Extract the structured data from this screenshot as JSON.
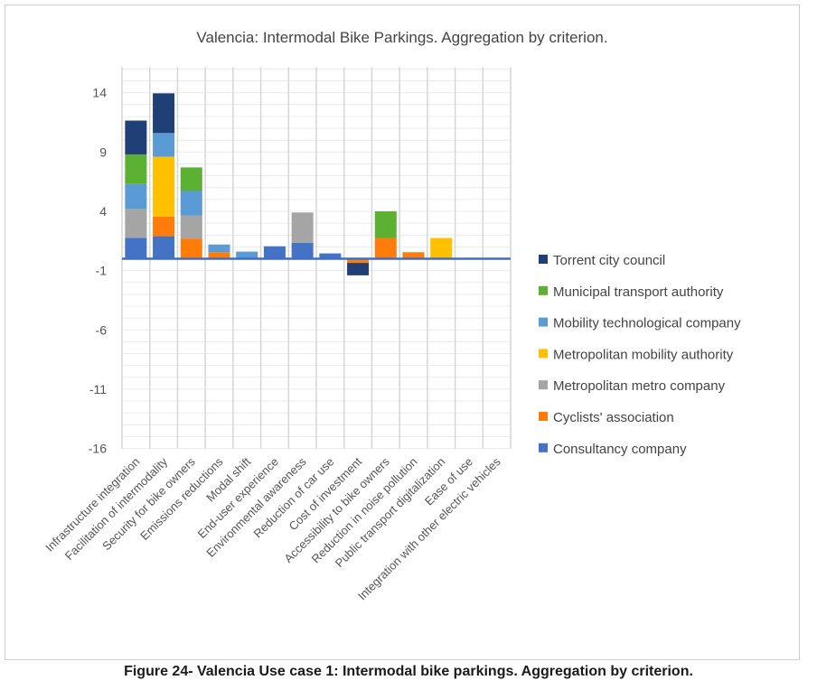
{
  "chart_data": {
    "type": "bar",
    "stacked": true,
    "title": "Valencia: Intermodal Bike Parkings. Aggregation by criterion.",
    "caption": "Figure 24- Valencia Use case 1: Intermodal bike parkings. Aggregation by criterion.",
    "xlabel": "",
    "ylabel": "",
    "ylim": [
      -16,
      16
    ],
    "yticks": [
      14,
      9,
      4,
      -1,
      -6,
      -11,
      -16
    ],
    "grid": true,
    "legend_position": "right",
    "categories": [
      "Infrastructure integration",
      "Facilitation of intermodality",
      "Security for bike owners",
      "Emissions reductions",
      "Modal shift",
      "End-user experience",
      "Environmental awareness",
      "Reduction of car use",
      "Cost of investment",
      "Accessibility to bike owners",
      "Reduction in noise pollution",
      "Public transport digitalization",
      "Ease of use",
      "Integration with other electric vehicles"
    ],
    "series": [
      {
        "name": "Consultancy company",
        "color": "#4472C4",
        "values": [
          1.75,
          1.9,
          0,
          0,
          0,
          1.05,
          1.35,
          0.45,
          0,
          0,
          0,
          0,
          0,
          0
        ]
      },
      {
        "name": "Cyclists' association",
        "color": "#FF7C0A",
        "values": [
          0,
          1.65,
          1.7,
          0.55,
          0,
          0,
          0,
          0,
          -0.35,
          1.75,
          0.55,
          0,
          0,
          0
        ]
      },
      {
        "name": "Metropolitan metro company",
        "color": "#A5A5A5",
        "values": [
          2.45,
          0,
          1.95,
          0,
          0,
          0,
          2.55,
          0,
          0,
          0,
          0,
          0,
          0,
          0
        ]
      },
      {
        "name": "Metropolitan mobility authority",
        "color": "#FFC000",
        "values": [
          0,
          5.05,
          0,
          0,
          0,
          0,
          0,
          0,
          0,
          0,
          0,
          1.75,
          0,
          0
        ]
      },
      {
        "name": "Mobility technological company",
        "color": "#5B9BD5",
        "values": [
          2.1,
          2.0,
          2.1,
          0.65,
          0.6,
          0,
          0,
          0,
          0,
          0,
          0,
          0,
          0,
          0
        ]
      },
      {
        "name": "Municipal transport authority",
        "color": "#5DB132",
        "values": [
          2.5,
          0,
          1.95,
          0,
          0,
          0,
          0,
          0,
          0,
          2.25,
          0,
          0,
          0,
          0
        ]
      },
      {
        "name": "Torrent city council",
        "color": "#213F77",
        "values": [
          2.85,
          3.35,
          0,
          0,
          0,
          0,
          0,
          0,
          -1.05,
          0,
          0,
          0,
          0,
          0
        ]
      }
    ]
  }
}
